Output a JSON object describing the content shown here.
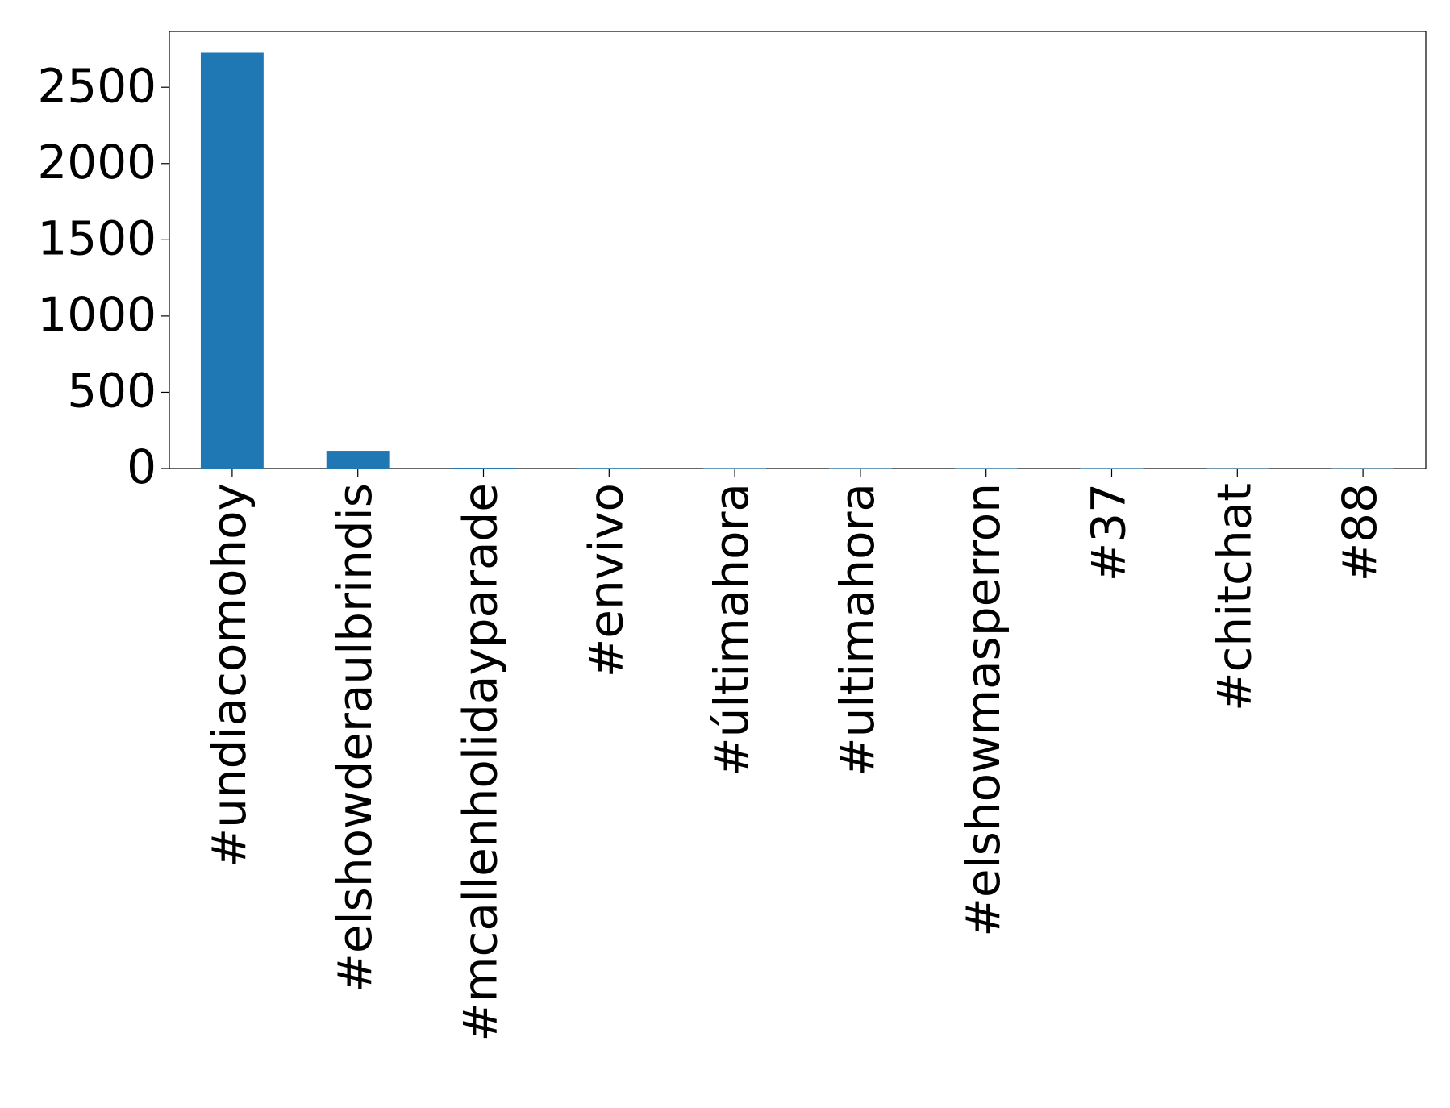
{
  "chart_data": {
    "type": "bar",
    "categories": [
      "#undiacomohoy",
      "#elshowderaulbrindis",
      "#mcallenholidayparade",
      "#envivo",
      "#últimahora",
      "#ultimahora",
      "#elshowmasperron",
      "#37",
      "#chitchat",
      "#88"
    ],
    "values": [
      2726,
      116,
      5,
      4,
      3,
      3,
      3,
      3,
      2,
      2
    ],
    "color": "#1f77b4",
    "ylim": [
      0,
      2866
    ],
    "yticks": [
      0,
      500,
      1000,
      1500,
      2000,
      2500
    ],
    "grid": false
  }
}
